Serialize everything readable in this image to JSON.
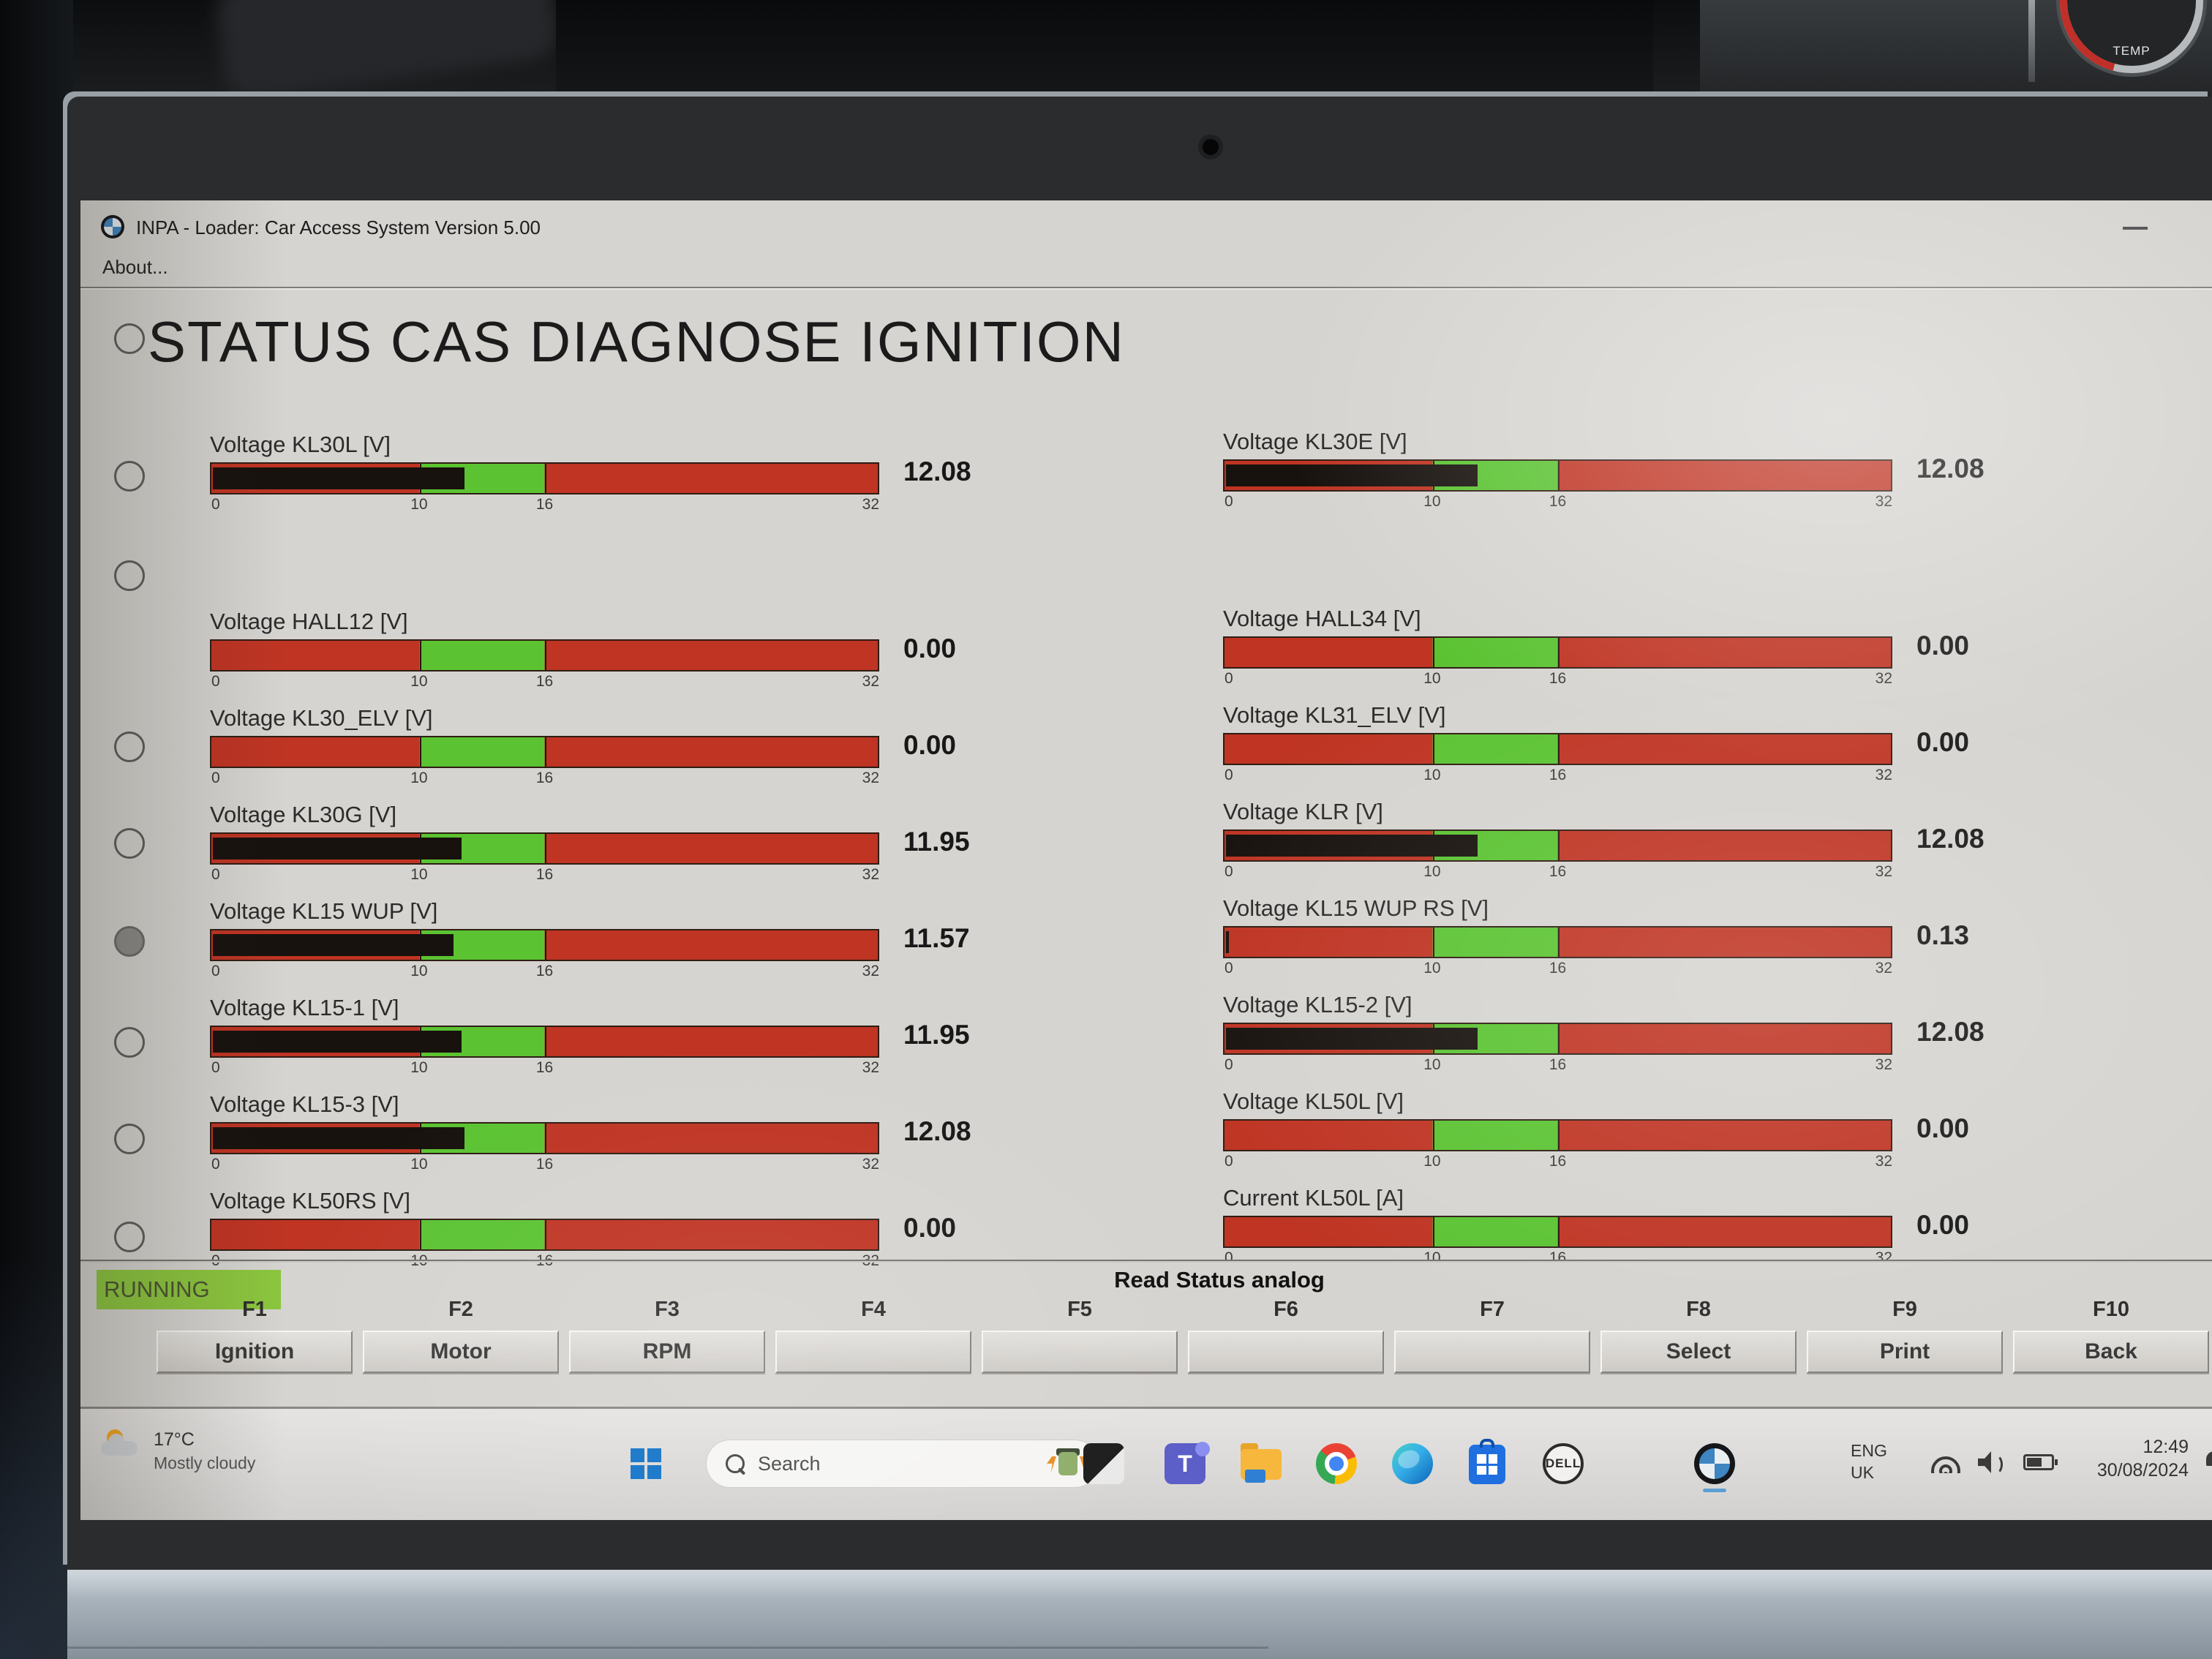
{
  "environment": {
    "climate_knob_label": "TEMP"
  },
  "window": {
    "title": "INPA - Loader:  Car Access System Version 5.00",
    "menu_about": "About...",
    "heading": "STATUS CAS DIAGNOSE IGNITION"
  },
  "gauges": {
    "scale": {
      "min": 0,
      "max": 32,
      "ticks": [
        "0",
        "10",
        "16",
        "32"
      ],
      "green_zone": [
        10,
        16
      ]
    },
    "left": [
      {
        "label": "Voltage KL30L [V]",
        "value": "12.08",
        "value_num": 12.08
      },
      {
        "label": "Voltage HALL12 [V]",
        "value": "0.00",
        "value_num": 0
      },
      {
        "label": "Voltage KL30_ELV [V]",
        "value": "0.00",
        "value_num": 0
      },
      {
        "label": "Voltage KL30G [V]",
        "value": "11.95",
        "value_num": 11.95
      },
      {
        "label": "Voltage KL15 WUP [V]",
        "value": "11.57",
        "value_num": 11.57
      },
      {
        "label": "Voltage KL15-1 [V]",
        "value": "11.95",
        "value_num": 11.95
      },
      {
        "label": "Voltage KL15-3 [V]",
        "value": "12.08",
        "value_num": 12.08
      },
      {
        "label": "Voltage KL50RS [V]",
        "value": "0.00",
        "value_num": 0
      }
    ],
    "right": [
      {
        "label": "Voltage KL30E [V]",
        "value": "12.08",
        "value_num": 12.08
      },
      {
        "label": "Voltage HALL34 [V]",
        "value": "0.00",
        "value_num": 0
      },
      {
        "label": "Voltage KL31_ELV [V]",
        "value": "0.00",
        "value_num": 0
      },
      {
        "label": "Voltage KLR [V]",
        "value": "12.08",
        "value_num": 12.08
      },
      {
        "label": "Voltage KL15 WUP RS [V]",
        "value": "0.13",
        "value_num": 0.13
      },
      {
        "label": "Voltage KL15-2 [V]",
        "value": "12.08",
        "value_num": 12.08
      },
      {
        "label": "Voltage KL50L [V]",
        "value": "0.00",
        "value_num": 0
      },
      {
        "label": "Current KL50L [A]",
        "value": "0.00",
        "value_num": 0
      }
    ]
  },
  "statusbar": {
    "state": "RUNNING",
    "message": "Read Status analog"
  },
  "function_keys": [
    {
      "key": "F1",
      "label": "Ignition"
    },
    {
      "key": "F2",
      "label": "Motor"
    },
    {
      "key": "F3",
      "label": "RPM"
    },
    {
      "key": "F4",
      "label": ""
    },
    {
      "key": "F5",
      "label": ""
    },
    {
      "key": "F6",
      "label": ""
    },
    {
      "key": "F7",
      "label": ""
    },
    {
      "key": "F8",
      "label": "Select"
    },
    {
      "key": "F9",
      "label": "Print"
    },
    {
      "key": "F10",
      "label": "Back"
    }
  ],
  "taskbar": {
    "weather": {
      "temperature": "17°C",
      "condition": "Mostly cloudy"
    },
    "search": {
      "label": "Search"
    },
    "dell_text": "DELL",
    "icons": [
      "frankenstein-seasonal-art",
      "photos",
      "teams",
      "file-explorer",
      "chrome",
      "edge",
      "microsoft-store",
      "dell",
      "bmw-inpa"
    ],
    "tray": {
      "language": "ENG",
      "region": "UK",
      "time": "12:49",
      "date": "30/08/2024"
    }
  },
  "colors": {
    "bar_red": "#bf3423",
    "bar_green": "#5bc332",
    "bar_fill": "#18120e",
    "running_green": "#8cc63e"
  }
}
